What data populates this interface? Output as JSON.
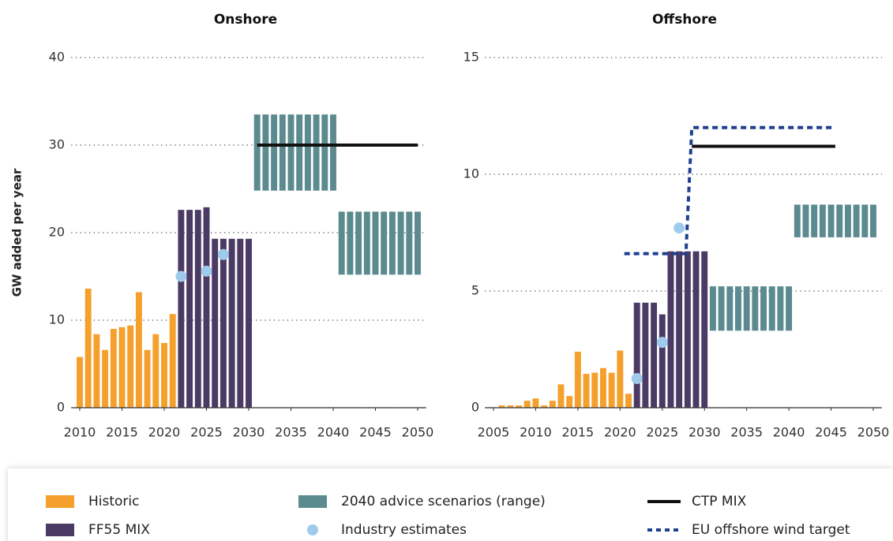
{
  "chart_data": [
    {
      "type": "bar",
      "title": "Onshore",
      "y_label": "GW added per year",
      "xlim": [
        2009,
        2051
      ],
      "xticks": [
        2010,
        2015,
        2020,
        2025,
        2030,
        2035,
        2040,
        2045,
        2050
      ],
      "ylim": [
        0,
        40
      ],
      "yticks": [
        0,
        10,
        20,
        30,
        40
      ],
      "grid": true,
      "series": [
        {
          "kind": "bar",
          "color": "#f5a02c",
          "x": [
            2010,
            2011,
            2012,
            2013,
            2014,
            2015,
            2016,
            2017,
            2018,
            2019,
            2020,
            2021
          ],
          "values": [
            5.8,
            13.6,
            8.4,
            6.6,
            9.0,
            9.2,
            9.4,
            13.2,
            6.6,
            8.4,
            7.4,
            10.7
          ]
        },
        {
          "kind": "bar",
          "color": "#4b3a63",
          "x": [
            2022,
            2023,
            2024,
            2025,
            2026,
            2027,
            2028,
            2029,
            2030
          ],
          "values": [
            22.6,
            22.6,
            22.6,
            22.9,
            19.3,
            19.3,
            19.3,
            19.3,
            19.3
          ]
        },
        {
          "kind": "range",
          "color": "#5b8a8f",
          "x_start": [
            2031,
            2041
          ],
          "x_end": [
            2040,
            2050
          ],
          "low": [
            24.8,
            15.2
          ],
          "high": [
            33.5,
            22.4
          ]
        },
        {
          "kind": "scatter",
          "color": "#9ecbec",
          "x": [
            2022,
            2025,
            2027
          ],
          "values": [
            15.0,
            15.6,
            17.5
          ]
        },
        {
          "kind": "line",
          "color": "#111111",
          "x": [
            2031,
            2050
          ],
          "values": [
            30,
            30
          ]
        }
      ]
    },
    {
      "type": "bar",
      "title": "Offshore",
      "xlim": [
        2004,
        2051
      ],
      "xticks": [
        2005,
        2010,
        2015,
        2020,
        2025,
        2030,
        2035,
        2040,
        2045,
        2050
      ],
      "ylim": [
        0,
        15
      ],
      "yticks": [
        0,
        5,
        10,
        15
      ],
      "grid": true,
      "series": [
        {
          "name": "Historic",
          "kind": "bar",
          "color": "#f5a02c",
          "x": [
            2006,
            2007,
            2008,
            2009,
            2010,
            2011,
            2012,
            2013,
            2014,
            2015,
            2016,
            2017,
            2018,
            2019,
            2020,
            2021
          ],
          "values": [
            0.1,
            0.1,
            0.1,
            0.3,
            0.4,
            0.1,
            0.3,
            1.0,
            0.5,
            2.4,
            1.45,
            1.5,
            1.7,
            1.5,
            2.45,
            0.6
          ]
        },
        {
          "name": "FF55 MIX",
          "kind": "bar",
          "color": "#4b3a63",
          "x": [
            2022,
            2023,
            2024,
            2025,
            2026,
            2027,
            2028,
            2029,
            2030
          ],
          "values": [
            4.5,
            4.5,
            4.5,
            4.0,
            6.7,
            6.7,
            6.7,
            6.7,
            6.7
          ]
        },
        {
          "name": "2040 advice scenarios (range)",
          "kind": "range",
          "color": "#5b8a8f",
          "x_start": [
            2031,
            2041
          ],
          "x_end": [
            2040,
            2050
          ],
          "low": [
            3.3,
            7.3
          ],
          "high": [
            5.2,
            8.7
          ]
        },
        {
          "name": "Industry estimates",
          "kind": "scatter",
          "color": "#9ecbec",
          "x": [
            2022,
            2025,
            2027
          ],
          "values": [
            1.25,
            2.8,
            7.7
          ]
        },
        {
          "name": "CTP MIX",
          "kind": "line",
          "color": "#111111",
          "x": [
            2028.5,
            2045.5
          ],
          "values": [
            11.2,
            11.2
          ]
        },
        {
          "name": "EU offshore wind target",
          "kind": "line",
          "dashed": true,
          "color": "#1f3f8f",
          "x": [
            2020.5,
            2027.8,
            2028.5,
            2045.5
          ],
          "values": [
            6.6,
            6.6,
            12,
            12
          ]
        }
      ]
    }
  ]
}
